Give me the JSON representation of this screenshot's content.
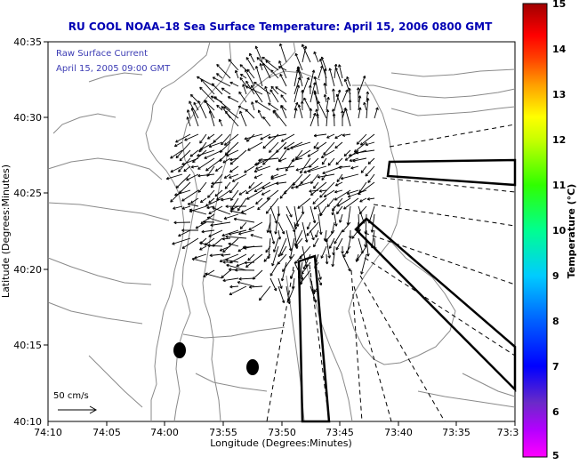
{
  "title": "RU COOL  NOAA–18  Sea Surface Temperature:  April 15, 2006 0800 GMT",
  "inset": {
    "line1": "Raw Surface Current",
    "line2": "April 15, 2005 09:00 GMT"
  },
  "scale_label": "50 cm/s",
  "x_axis": {
    "label": "Longitude (Degrees:Minutes)",
    "ticks": [
      "74:10",
      "74:05",
      "74:00",
      "73:55",
      "73:50",
      "73:45",
      "73:40",
      "73:35",
      "73:3"
    ]
  },
  "y_axis": {
    "label": "Latitude (Degrees:Minutes)",
    "ticks": [
      "40:35",
      "40:30",
      "40:25",
      "40:20",
      "40:15",
      "40:10"
    ]
  },
  "colorbar": {
    "label": "Temperature (°C)",
    "ticks": [
      "15",
      "14",
      "13",
      "12",
      "11",
      "10",
      "9",
      "8",
      "7",
      "6",
      "5"
    ],
    "range": [
      5,
      15
    ],
    "colors": [
      "#ff00ff",
      "#7a00c8",
      "#0000ff",
      "#0080ff",
      "#00ffff",
      "#00ff80",
      "#00ff00",
      "#80ff00",
      "#ffff00",
      "#ffc000",
      "#ff8000",
      "#ff0000",
      "#a00000"
    ]
  },
  "colors": {
    "title": "#0000b4",
    "inset_text": "#3c3cb4",
    "contour": "#8a8a8a",
    "vector": "#000000"
  }
}
